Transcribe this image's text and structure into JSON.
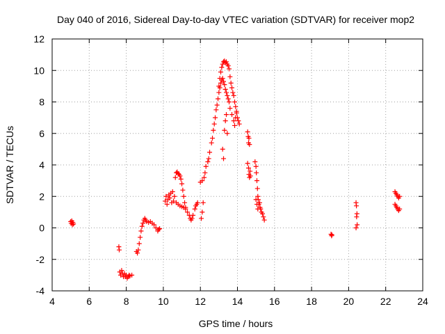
{
  "chart_data": {
    "type": "scatter",
    "title": "Day 040 of 2016, Sidereal Day-to-day VTEC variation (SDTVAR) for receiver mop2",
    "xlabel": "GPS time / hours",
    "ylabel": "SDTVAR / TECUs",
    "xlim": [
      4,
      24
    ],
    "ylim": [
      -4,
      12
    ],
    "xticks": [
      4,
      6,
      8,
      10,
      12,
      14,
      16,
      18,
      20,
      22,
      24
    ],
    "yticks": [
      -4,
      -2,
      0,
      2,
      4,
      6,
      8,
      10,
      12
    ],
    "grid": true,
    "marker": "+",
    "color": "#ff0000",
    "series": [
      {
        "name": "SDTVAR",
        "points": [
          [
            5.0,
            0.4
          ],
          [
            5.03,
            0.3
          ],
          [
            5.06,
            0.45
          ],
          [
            5.09,
            0.2
          ],
          [
            5.12,
            0.35
          ],
          [
            5.15,
            0.25
          ],
          [
            7.6,
            -1.2
          ],
          [
            7.62,
            -1.4
          ],
          [
            7.65,
            -2.8
          ],
          [
            7.7,
            -3.0
          ],
          [
            7.75,
            -2.7
          ],
          [
            7.8,
            -2.9
          ],
          [
            7.85,
            -3.1
          ],
          [
            7.9,
            -2.9
          ],
          [
            7.95,
            -3.1
          ],
          [
            8.0,
            -3.0
          ],
          [
            8.05,
            -3.2
          ],
          [
            8.1,
            -3.1
          ],
          [
            8.15,
            -3.0
          ],
          [
            8.2,
            -3.05
          ],
          [
            8.3,
            -3.0
          ],
          [
            8.55,
            -1.5
          ],
          [
            8.6,
            -1.6
          ],
          [
            8.65,
            -1.4
          ],
          [
            8.7,
            -1.0
          ],
          [
            8.75,
            -0.6
          ],
          [
            8.8,
            -0.2
          ],
          [
            8.85,
            0.1
          ],
          [
            8.9,
            0.3
          ],
          [
            8.95,
            0.5
          ],
          [
            9.0,
            0.6
          ],
          [
            9.05,
            0.5
          ],
          [
            9.1,
            0.4
          ],
          [
            9.2,
            0.35
          ],
          [
            9.3,
            0.4
          ],
          [
            9.4,
            0.3
          ],
          [
            9.5,
            0.2
          ],
          [
            9.6,
            0.0
          ],
          [
            9.7,
            -0.2
          ],
          [
            9.75,
            -0.1
          ],
          [
            9.8,
            -0.05
          ],
          [
            10.1,
            1.7
          ],
          [
            10.15,
            2.0
          ],
          [
            10.2,
            1.5
          ],
          [
            10.25,
            1.8
          ],
          [
            10.3,
            2.1
          ],
          [
            10.35,
            1.9
          ],
          [
            10.4,
            2.2
          ],
          [
            10.45,
            1.6
          ],
          [
            10.5,
            2.3
          ],
          [
            10.55,
            1.7
          ],
          [
            10.6,
            2.0
          ],
          [
            10.65,
            3.2
          ],
          [
            10.7,
            3.5
          ],
          [
            10.75,
            3.55
          ],
          [
            10.8,
            3.45
          ],
          [
            10.85,
            3.4
          ],
          [
            10.9,
            3.3
          ],
          [
            10.95,
            3.1
          ],
          [
            11.0,
            2.8
          ],
          [
            11.05,
            2.4
          ],
          [
            11.1,
            2.0
          ],
          [
            11.15,
            1.6
          ],
          [
            11.2,
            1.3
          ],
          [
            10.7,
            1.6
          ],
          [
            10.8,
            1.5
          ],
          [
            10.9,
            1.4
          ],
          [
            11.0,
            1.35
          ],
          [
            11.1,
            1.3
          ],
          [
            11.2,
            1.2
          ],
          [
            11.3,
            1.0
          ],
          [
            11.4,
            0.8
          ],
          [
            11.45,
            0.6
          ],
          [
            11.5,
            0.5
          ],
          [
            11.55,
            0.6
          ],
          [
            11.6,
            0.8
          ],
          [
            11.7,
            1.2
          ],
          [
            11.75,
            1.4
          ],
          [
            11.8,
            1.5
          ],
          [
            11.85,
            1.6
          ],
          [
            12.05,
            0.6
          ],
          [
            12.1,
            1.0
          ],
          [
            12.15,
            1.6
          ],
          [
            12.0,
            2.9
          ],
          [
            12.1,
            3.0
          ],
          [
            12.2,
            3.2
          ],
          [
            12.25,
            3.5
          ],
          [
            12.3,
            3.9
          ],
          [
            12.4,
            4.2
          ],
          [
            12.45,
            4.4
          ],
          [
            12.5,
            4.8
          ],
          [
            12.6,
            5.4
          ],
          [
            12.65,
            5.7
          ],
          [
            12.7,
            6.2
          ],
          [
            12.75,
            6.6
          ],
          [
            12.8,
            7.0
          ],
          [
            12.85,
            7.5
          ],
          [
            12.9,
            7.8
          ],
          [
            12.95,
            8.2
          ],
          [
            13.0,
            8.6
          ],
          [
            13.05,
            8.9
          ],
          [
            13.1,
            9.2
          ],
          [
            13.15,
            9.4
          ],
          [
            13.2,
            9.5
          ],
          [
            13.25,
            9.3
          ],
          [
            13.3,
            9.1
          ],
          [
            13.35,
            8.8
          ],
          [
            13.4,
            8.6
          ],
          [
            13.45,
            8.4
          ],
          [
            13.5,
            8.2
          ],
          [
            13.55,
            8.0
          ],
          [
            13.6,
            7.6
          ],
          [
            13.7,
            7.2
          ],
          [
            13.8,
            6.8
          ],
          [
            13.85,
            6.5
          ],
          [
            13.9,
            7.0
          ],
          [
            13.95,
            7.4
          ],
          [
            13.0,
            9.0
          ],
          [
            13.05,
            9.5
          ],
          [
            13.1,
            9.9
          ],
          [
            13.15,
            10.2
          ],
          [
            13.2,
            10.4
          ],
          [
            13.25,
            10.55
          ],
          [
            13.3,
            10.6
          ],
          [
            13.35,
            10.5
          ],
          [
            13.4,
            10.55
          ],
          [
            13.45,
            10.4
          ],
          [
            13.5,
            10.3
          ],
          [
            13.55,
            10.1
          ],
          [
            13.6,
            9.6
          ],
          [
            13.65,
            9.2
          ],
          [
            13.7,
            8.9
          ],
          [
            13.75,
            8.6
          ],
          [
            13.8,
            8.4
          ],
          [
            13.85,
            8.0
          ],
          [
            13.9,
            7.7
          ],
          [
            13.95,
            7.3
          ],
          [
            14.0,
            7.0
          ],
          [
            14.05,
            6.8
          ],
          [
            14.1,
            6.6
          ],
          [
            13.2,
            5.0
          ],
          [
            13.25,
            4.4
          ],
          [
            13.3,
            6.2
          ],
          [
            13.35,
            6.8
          ],
          [
            13.4,
            7.2
          ],
          [
            13.45,
            6.0
          ],
          [
            14.55,
            6.1
          ],
          [
            14.58,
            5.8
          ],
          [
            14.6,
            5.4
          ],
          [
            14.62,
            5.7
          ],
          [
            14.65,
            5.3
          ],
          [
            14.55,
            4.1
          ],
          [
            14.6,
            3.8
          ],
          [
            14.62,
            3.4
          ],
          [
            14.65,
            3.2
          ],
          [
            14.7,
            3.3
          ],
          [
            14.68,
            3.6
          ],
          [
            14.95,
            4.2
          ],
          [
            15.0,
            3.9
          ],
          [
            15.02,
            3.5
          ],
          [
            15.05,
            3.0
          ],
          [
            15.08,
            2.5
          ],
          [
            15.1,
            2.0
          ],
          [
            15.12,
            1.8
          ],
          [
            15.15,
            1.5
          ],
          [
            15.2,
            1.6
          ],
          [
            15.22,
            1.3
          ],
          [
            15.25,
            1.2
          ],
          [
            15.3,
            1.0
          ],
          [
            15.35,
            0.9
          ],
          [
            15.4,
            0.7
          ],
          [
            15.45,
            0.5
          ],
          [
            15.0,
            1.8
          ],
          [
            15.05,
            1.5
          ],
          [
            15.1,
            1.2
          ],
          [
            19.05,
            -0.4
          ],
          [
            19.08,
            -0.5
          ],
          [
            19.1,
            -0.45
          ],
          [
            20.4,
            1.6
          ],
          [
            20.42,
            1.4
          ],
          [
            20.45,
            0.9
          ],
          [
            20.43,
            0.7
          ],
          [
            20.46,
            0.2
          ],
          [
            20.4,
            0.0
          ],
          [
            22.5,
            2.3
          ],
          [
            22.55,
            2.2
          ],
          [
            22.6,
            2.1
          ],
          [
            22.65,
            2.0
          ],
          [
            22.7,
            1.9
          ],
          [
            22.75,
            2.0
          ],
          [
            22.5,
            1.5
          ],
          [
            22.55,
            1.4
          ],
          [
            22.6,
            1.3
          ],
          [
            22.65,
            1.2
          ],
          [
            22.7,
            1.1
          ],
          [
            22.75,
            1.2
          ]
        ]
      }
    ]
  }
}
